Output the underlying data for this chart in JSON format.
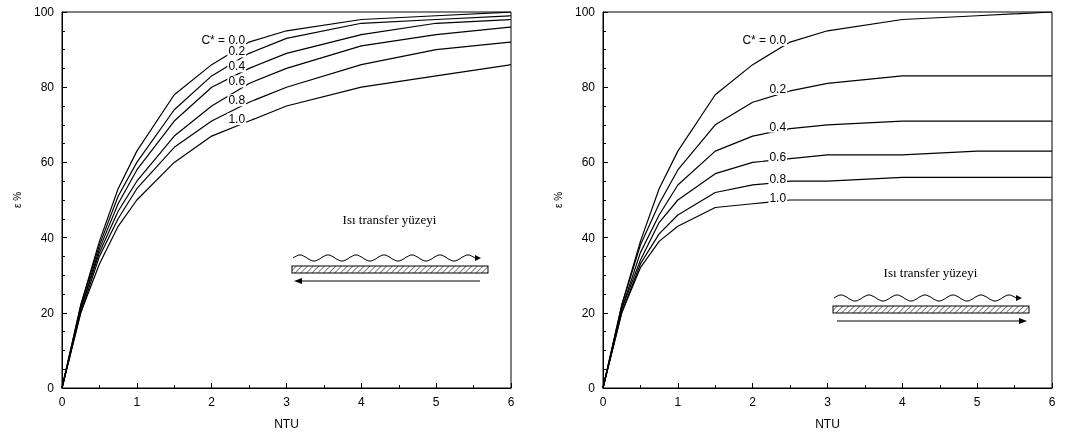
{
  "chart_data": [
    {
      "type": "line",
      "xlabel": "NTU",
      "ylabel": "ε %",
      "x": [
        0,
        0.25,
        0.5,
        0.75,
        1,
        1.5,
        2,
        2.5,
        3,
        4,
        5,
        6
      ],
      "xlim": [
        0,
        6
      ],
      "ylim": [
        0,
        100
      ],
      "xticks": [
        0,
        1,
        2,
        3,
        4,
        5,
        6
      ],
      "yticks": [
        0,
        20,
        40,
        60,
        80,
        100
      ],
      "grid": false,
      "marker": "none",
      "line_style": "solid",
      "series": [
        {
          "color": "#000000",
          "values": [
            0,
            22,
            39,
            53,
            63,
            78,
            86,
            92,
            95,
            98,
            99,
            100
          ]
        },
        {
          "color": "#000000",
          "values": [
            0,
            22,
            38,
            51,
            60,
            74,
            83,
            89,
            93,
            97,
            98,
            99
          ]
        },
        {
          "color": "#000000",
          "values": [
            0,
            21,
            37,
            49,
            58,
            71,
            80,
            85,
            89,
            94,
            97,
            98
          ]
        },
        {
          "color": "#000000",
          "values": [
            0,
            21,
            36,
            47,
            55,
            67,
            75,
            81,
            85,
            91,
            94,
            96
          ]
        },
        {
          "color": "#000000",
          "values": [
            0,
            20,
            35,
            45,
            53,
            64,
            71,
            76,
            80,
            86,
            90,
            92
          ]
        },
        {
          "color": "#000000",
          "values": [
            0,
            20,
            33,
            43,
            50,
            60,
            67,
            71,
            75,
            80,
            83,
            86
          ]
        }
      ],
      "annotations": [
        "C* = 0.0",
        "0.2",
        "0.4",
        "0.6",
        "0.8",
        "1.0",
        "Isı transfer yüzeyi"
      ]
    },
    {
      "type": "line",
      "xlabel": "NTU",
      "ylabel": "ε %",
      "x": [
        0,
        0.25,
        0.5,
        0.75,
        1,
        1.5,
        2,
        2.5,
        3,
        4,
        5,
        6
      ],
      "xlim": [
        0,
        6
      ],
      "ylim": [
        0,
        100
      ],
      "xticks": [
        0,
        1,
        2,
        3,
        4,
        5,
        6
      ],
      "yticks": [
        0,
        20,
        40,
        60,
        80,
        100
      ],
      "grid": false,
      "marker": "none",
      "line_style": "solid",
      "series": [
        {
          "color": "#000000",
          "values": [
            0,
            22,
            39,
            53,
            63,
            78,
            86,
            92,
            95,
            98,
            99,
            100
          ]
        },
        {
          "color": "#000000",
          "values": [
            0,
            22,
            38,
            49,
            58,
            70,
            76,
            79,
            81,
            83,
            83,
            83
          ]
        },
        {
          "color": "#000000",
          "values": [
            0,
            21,
            36,
            46,
            54,
            63,
            67,
            69,
            70,
            71,
            71,
            71
          ]
        },
        {
          "color": "#000000",
          "values": [
            0,
            21,
            34,
            44,
            50,
            57,
            60,
            61,
            62,
            62,
            63,
            63
          ]
        },
        {
          "color": "#000000",
          "values": [
            0,
            20,
            33,
            41,
            46,
            52,
            54,
            55,
            55,
            56,
            56,
            56
          ]
        },
        {
          "color": "#000000",
          "values": [
            0,
            20,
            32,
            39,
            43,
            48,
            49,
            50,
            50,
            50,
            50,
            50
          ]
        }
      ],
      "annotations": [
        "C* = 0.0",
        "0.2",
        "0.4",
        "0.6",
        "0.8",
        "1.0",
        "Isı transfer yüzeyi"
      ]
    }
  ]
}
